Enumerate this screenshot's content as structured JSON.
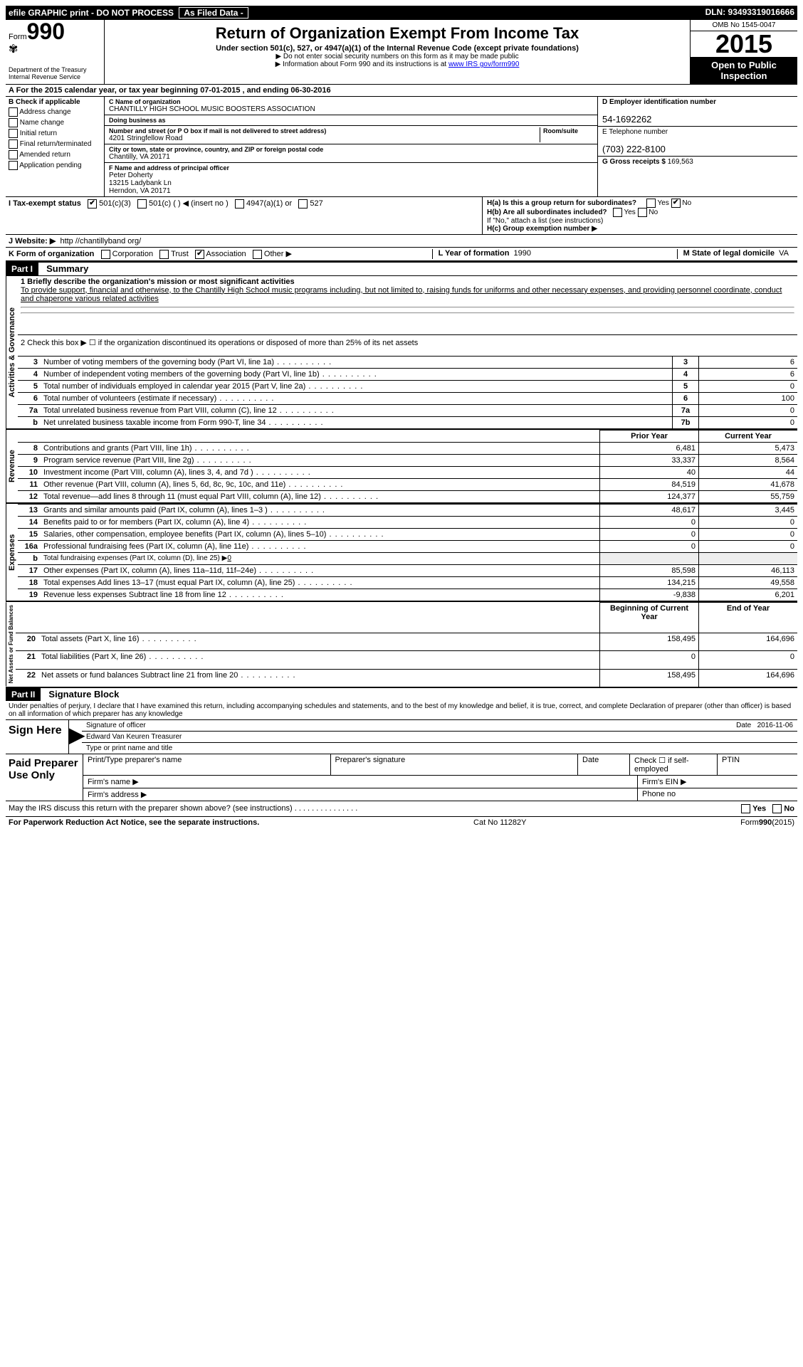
{
  "topbar": {
    "left": "efile GRAPHIC print - DO NOT PROCESS",
    "mid": "As Filed Data -",
    "right": "DLN: 93493319016666"
  },
  "header": {
    "form_prefix": "Form",
    "form_num": "990",
    "dept1": "Department of the Treasury",
    "dept2": "Internal Revenue Service",
    "title": "Return of Organization Exempt From Income Tax",
    "sub": "Under section 501(c), 527, or 4947(a)(1) of the Internal Revenue Code (except private foundations)",
    "sub2a": "▶ Do not enter social security numbers on this form as it may be made public",
    "sub2b": "▶ Information about Form 990 and its instructions is at ",
    "sub2b_link": "www IRS gov/form990",
    "omb": "OMB No 1545-0047",
    "year": "2015",
    "open": "Open to Public Inspection"
  },
  "rowA": "A  For the 2015 calendar year, or tax year beginning 07-01-2015    , and ending 06-30-2016",
  "colB": {
    "hdr": "B Check if applicable",
    "items": [
      "Address change",
      "Name change",
      "Initial return",
      "Final return/terminated",
      "Amended return",
      "Application pending"
    ]
  },
  "colC": {
    "name_lbl": "C Name of organization",
    "name": "CHANTILLY HIGH SCHOOL MUSIC BOOSTERS ASSOCIATION",
    "dba_lbl": "Doing business as",
    "dba": "",
    "addr_lbl": "Number and street (or P O box if mail is not delivered to street address)",
    "room_lbl": "Room/suite",
    "addr": "4201 Stringfellow Road",
    "city_lbl": "City or town, state or province, country, and ZIP or foreign postal code",
    "city": "Chantilly, VA  20171",
    "f_lbl": "F Name and address of principal officer",
    "f_name": "Peter Doherty",
    "f_addr1": "13215 Ladybank Ln",
    "f_addr2": "Herndon, VA  20171"
  },
  "colDE": {
    "d_lbl": "D Employer identification number",
    "d_val": "54-1692262",
    "e_lbl": "E Telephone number",
    "e_val": "(703) 222-8100",
    "g_lbl": "G Gross receipts $",
    "g_val": "169,563"
  },
  "rowH": {
    "ha": "H(a)  Is this a group return for subordinates?",
    "ha_ans": "No",
    "hb": "H(b)  Are all subordinates included?",
    "hb_note": "If \"No,\" attach a list  (see instructions)",
    "hc": "H(c)  Group exemption number ▶"
  },
  "rowI": {
    "lbl": "I   Tax-exempt status",
    "opts": [
      "501(c)(3)",
      "501(c) (  ) ◀ (insert no )",
      "4947(a)(1) or",
      "527"
    ]
  },
  "rowJ": {
    "lbl": "J  Website: ▶",
    "val": "http //chantillyband org/"
  },
  "rowK": {
    "lbl": "K Form of organization",
    "opts": [
      "Corporation",
      "Trust",
      "Association",
      "Other ▶"
    ],
    "l_lbl": "L Year of formation",
    "l_val": "1990",
    "m_lbl": "M State of legal domicile",
    "m_val": "VA"
  },
  "part1": {
    "hdr": "Part I",
    "title": "Summary",
    "mission_lbl": "1 Briefly describe the organization's mission or most significant activities",
    "mission": "To provide support, financial and otherwise, to the Chantilly High School music programs including, but not limited to, raising funds for uniforms and other necessary expenses, and providing personnel coordinate, conduct and chaperone various related activities",
    "line2": "2  Check this box ▶ ☐ if the organization discontinued its operations or disposed of more than 25% of its net assets",
    "gov_label": "Activities & Governance",
    "rev_label": "Revenue",
    "exp_label": "Expenses",
    "net_label": "Net Assets or Fund Balances",
    "rows_gov": [
      {
        "n": "3",
        "d": "Number of voting members of the governing body (Part VI, line 1a)",
        "k": "3",
        "v": "6"
      },
      {
        "n": "4",
        "d": "Number of independent voting members of the governing body (Part VI, line 1b)",
        "k": "4",
        "v": "6"
      },
      {
        "n": "5",
        "d": "Total number of individuals employed in calendar year 2015 (Part V, line 2a)",
        "k": "5",
        "v": "0"
      },
      {
        "n": "6",
        "d": "Total number of volunteers (estimate if necessary)",
        "k": "6",
        "v": "100"
      },
      {
        "n": "7a",
        "d": "Total unrelated business revenue from Part VIII, column (C), line 12",
        "k": "7a",
        "v": "0"
      },
      {
        "n": "b",
        "d": "Net unrelated business taxable income from Form 990-T, line 34",
        "k": "7b",
        "v": "0"
      }
    ],
    "col_prior": "Prior Year",
    "col_curr": "Current Year",
    "rows_rev": [
      {
        "n": "8",
        "d": "Contributions and grants (Part VIII, line 1h)",
        "p": "6,481",
        "c": "5,473"
      },
      {
        "n": "9",
        "d": "Program service revenue (Part VIII, line 2g)",
        "p": "33,337",
        "c": "8,564"
      },
      {
        "n": "10",
        "d": "Investment income (Part VIII, column (A), lines 3, 4, and 7d )",
        "p": "40",
        "c": "44"
      },
      {
        "n": "11",
        "d": "Other revenue (Part VIII, column (A), lines 5, 6d, 8c, 9c, 10c, and 11e)",
        "p": "84,519",
        "c": "41,678"
      },
      {
        "n": "12",
        "d": "Total revenue—add lines 8 through 11 (must equal Part VIII, column (A), line 12)",
        "p": "124,377",
        "c": "55,759"
      }
    ],
    "rows_exp": [
      {
        "n": "13",
        "d": "Grants and similar amounts paid (Part IX, column (A), lines 1–3 )",
        "p": "48,617",
        "c": "3,445"
      },
      {
        "n": "14",
        "d": "Benefits paid to or for members (Part IX, column (A), line 4)",
        "p": "0",
        "c": "0"
      },
      {
        "n": "15",
        "d": "Salaries, other compensation, employee benefits (Part IX, column (A), lines 5–10)",
        "p": "0",
        "c": "0"
      },
      {
        "n": "16a",
        "d": "Professional fundraising fees (Part IX, column (A), line 11e)",
        "p": "0",
        "c": "0"
      },
      {
        "n": "b",
        "d": "Total fundraising expenses (Part IX, column (D), line 25) ▶",
        "p": "",
        "c": "",
        "extra": "0"
      },
      {
        "n": "17",
        "d": "Other expenses (Part IX, column (A), lines 11a–11d, 11f–24e)",
        "p": "85,598",
        "c": "46,113"
      },
      {
        "n": "18",
        "d": "Total expenses  Add lines 13–17 (must equal Part IX, column (A), line 25)",
        "p": "134,215",
        "c": "49,558"
      },
      {
        "n": "19",
        "d": "Revenue less expenses  Subtract line 18 from line 12",
        "p": "-9,838",
        "c": "6,201"
      }
    ],
    "col_begin": "Beginning of Current Year",
    "col_end": "End of Year",
    "rows_net": [
      {
        "n": "20",
        "d": "Total assets (Part X, line 16)",
        "p": "158,495",
        "c": "164,696"
      },
      {
        "n": "21",
        "d": "Total liabilities (Part X, line 26)",
        "p": "0",
        "c": "0"
      },
      {
        "n": "22",
        "d": "Net assets or fund balances  Subtract line 21 from line 20",
        "p": "158,495",
        "c": "164,696"
      }
    ]
  },
  "part2": {
    "hdr": "Part II",
    "title": "Signature Block",
    "decl": "Under penalties of perjury, I declare that I have examined this return, including accompanying schedules and statements, and to the best of my knowledge and belief, it is true, correct, and complete  Declaration of preparer (other than officer) is based on all information of which preparer has any knowledge",
    "sign_here": "Sign Here",
    "sig_officer": "Signature of officer",
    "sig_date_lbl": "Date",
    "sig_date": "2016-11-06",
    "sig_name": "Edward Van Keuren Treasurer",
    "sig_name_lbl": "Type or print name and title",
    "paid": "Paid Preparer Use Only",
    "prep_name": "Print/Type preparer's name",
    "prep_sig": "Preparer's signature",
    "prep_date": "Date",
    "prep_check": "Check ☐ if self-employed",
    "ptin": "PTIN",
    "firm_name": "Firm's name   ▶",
    "firm_ein": "Firm's EIN ▶",
    "firm_addr": "Firm's address ▶",
    "phone": "Phone no",
    "may_discuss": "May the IRS discuss this return with the preparer shown above? (see instructions)",
    "yes": "Yes",
    "no": "No"
  },
  "footer": {
    "left": "For Paperwork Reduction Act Notice, see the separate instructions.",
    "mid": "Cat No  11282Y",
    "right": "Form 990 (2015)"
  }
}
